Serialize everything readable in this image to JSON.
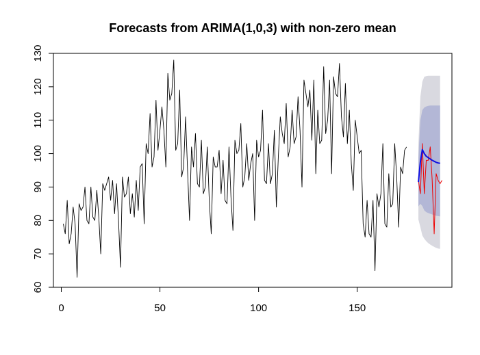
{
  "chart_data": {
    "type": "line",
    "title": "Forecasts from ARIMA(1,0,3) with non-zero mean",
    "xlabel": "",
    "ylabel": "",
    "xlim": [
      -4,
      198
    ],
    "ylim": [
      60,
      130
    ],
    "x_ticks": [
      0,
      50,
      100,
      150
    ],
    "y_ticks": [
      60,
      70,
      80,
      90,
      100,
      110,
      120,
      130
    ],
    "x_tick_labels": [
      "0",
      "50",
      "100",
      "150"
    ],
    "y_tick_labels": [
      "60",
      "70",
      "80",
      "90",
      "100",
      "110",
      "120",
      "130"
    ],
    "grid": false,
    "legend": "none",
    "colors": {
      "observed": "#000000",
      "actual_future": "#ee0000",
      "forecast_mean": "#1010e0",
      "pi_80": "#b3b7d6",
      "pi_95": "#d9d9e0"
    },
    "series": [
      {
        "role": "observed",
        "x_start": 1,
        "values": [
          79,
          76,
          86,
          73,
          76,
          84,
          79,
          63,
          85,
          83,
          84,
          90,
          80,
          79,
          90,
          81,
          80,
          89,
          81,
          70,
          91,
          89,
          91,
          93,
          86,
          92,
          82,
          91,
          80,
          66,
          93,
          87,
          88,
          93,
          82,
          88,
          81,
          92,
          83,
          96,
          97,
          79,
          103,
          100,
          112,
          96,
          99,
          116,
          101,
          107,
          114,
          107,
          96,
          124,
          116,
          118,
          128,
          101,
          103,
          119,
          93,
          96,
          111,
          95,
          80,
          102,
          96,
          106,
          91,
          90,
          104,
          88,
          90,
          102,
          86,
          76,
          99,
          96,
          96,
          101,
          88,
          98,
          86,
          85,
          102,
          87,
          77,
          104,
          100,
          101,
          109,
          90,
          93,
          103,
          92,
          97,
          100,
          80,
          104,
          99,
          101,
          113,
          92,
          91,
          103,
          91,
          94,
          107,
          84,
          99,
          111,
          106,
          103,
          115,
          99,
          102,
          113,
          103,
          105,
          117,
          107,
          90,
          122,
          118,
          114,
          119,
          104,
          122,
          94,
          113,
          103,
          104,
          126,
          106,
          110,
          122,
          94,
          123,
          118,
          117,
          127,
          111,
          105,
          121,
          103,
          113,
          97,
          89,
          110,
          105,
          100,
          101,
          79,
          75,
          86,
          76,
          75,
          86,
          65,
          88,
          84,
          88,
          103,
          79,
          78,
          94,
          84,
          85,
          103,
          93,
          78,
          96,
          94,
          101,
          102
        ]
      },
      {
        "role": "actual_future",
        "x_start": 181,
        "values": [
          92,
          88,
          103,
          88,
          98,
          98,
          102,
          92,
          76,
          94,
          92,
          91,
          92
        ]
      },
      {
        "role": "forecast_mean",
        "x_start": 181,
        "values": [
          91.5,
          97.5,
          101.2,
          100,
          99.2,
          98.8,
          98.4,
          98,
          97.7,
          97.4,
          97.2,
          97.1
        ]
      }
    ],
    "intervals": [
      {
        "level": 95,
        "x_start": 181,
        "lower": [
          80.3,
          78,
          75.5,
          74.5,
          73.8,
          73.2,
          72.8,
          72.4,
          72.1,
          71.8,
          71.6,
          71.5
        ],
        "upper": [
          102.7,
          117,
          121.5,
          123,
          123.2,
          123.3,
          123.3,
          123.3,
          123.3,
          123.3,
          123.3,
          123.3
        ]
      },
      {
        "level": 80,
        "x_start": 181,
        "lower": [
          84.2,
          85,
          84.3,
          83,
          82.5,
          82.2,
          82,
          81.8,
          81.6,
          81.4,
          81.3,
          81.2
        ],
        "upper": [
          98.8,
          110,
          113,
          113.8,
          114.1,
          114.3,
          114.4,
          114.4,
          114.4,
          114.4,
          114.4,
          114.4
        ]
      }
    ]
  }
}
